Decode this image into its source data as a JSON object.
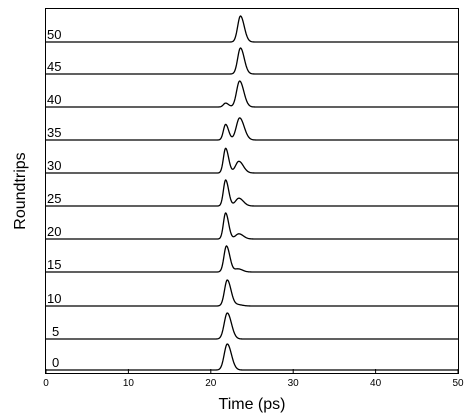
{
  "chart_data": {
    "type": "line",
    "title": "",
    "xlabel": "Time (ps)",
    "ylabel": "Roundtrips",
    "xlim": [
      0,
      50
    ],
    "xticks": [
      0,
      10,
      20,
      30,
      40,
      50
    ],
    "grid": false,
    "layout": "waterfall (stacked traces)",
    "series": [
      {
        "name": "0",
        "peaks": [
          {
            "t": 22.0,
            "amp": 1.0,
            "w": 0.55
          }
        ]
      },
      {
        "name": "5",
        "peaks": [
          {
            "t": 22.0,
            "amp": 1.0,
            "w": 0.55
          }
        ]
      },
      {
        "name": "10",
        "peaks": [
          {
            "t": 22.0,
            "amp": 1.0,
            "w": 0.5
          },
          {
            "t": 23.3,
            "amp": 0.05,
            "w": 0.6
          }
        ]
      },
      {
        "name": "15",
        "peaks": [
          {
            "t": 21.9,
            "amp": 1.0,
            "w": 0.45
          },
          {
            "t": 23.3,
            "amp": 0.12,
            "w": 0.6
          }
        ]
      },
      {
        "name": "20",
        "peaks": [
          {
            "t": 21.8,
            "amp": 1.0,
            "w": 0.4
          },
          {
            "t": 23.4,
            "amp": 0.2,
            "w": 0.6
          }
        ]
      },
      {
        "name": "25",
        "peaks": [
          {
            "t": 21.8,
            "amp": 1.0,
            "w": 0.4
          },
          {
            "t": 23.4,
            "amp": 0.3,
            "w": 0.6
          }
        ]
      },
      {
        "name": "30",
        "peaks": [
          {
            "t": 21.8,
            "amp": 0.95,
            "w": 0.4
          },
          {
            "t": 23.4,
            "amp": 0.45,
            "w": 0.6
          }
        ]
      },
      {
        "name": "35",
        "peaks": [
          {
            "t": 21.8,
            "amp": 0.6,
            "w": 0.4
          },
          {
            "t": 23.5,
            "amp": 0.85,
            "w": 0.6
          }
        ]
      },
      {
        "name": "40",
        "peaks": [
          {
            "t": 21.8,
            "amp": 0.15,
            "w": 0.4
          },
          {
            "t": 23.5,
            "amp": 1.0,
            "w": 0.55
          }
        ]
      },
      {
        "name": "45",
        "peaks": [
          {
            "t": 23.6,
            "amp": 1.0,
            "w": 0.5
          }
        ]
      },
      {
        "name": "50",
        "peaks": [
          {
            "t": 23.6,
            "amp": 1.0,
            "w": 0.5
          }
        ]
      }
    ]
  }
}
